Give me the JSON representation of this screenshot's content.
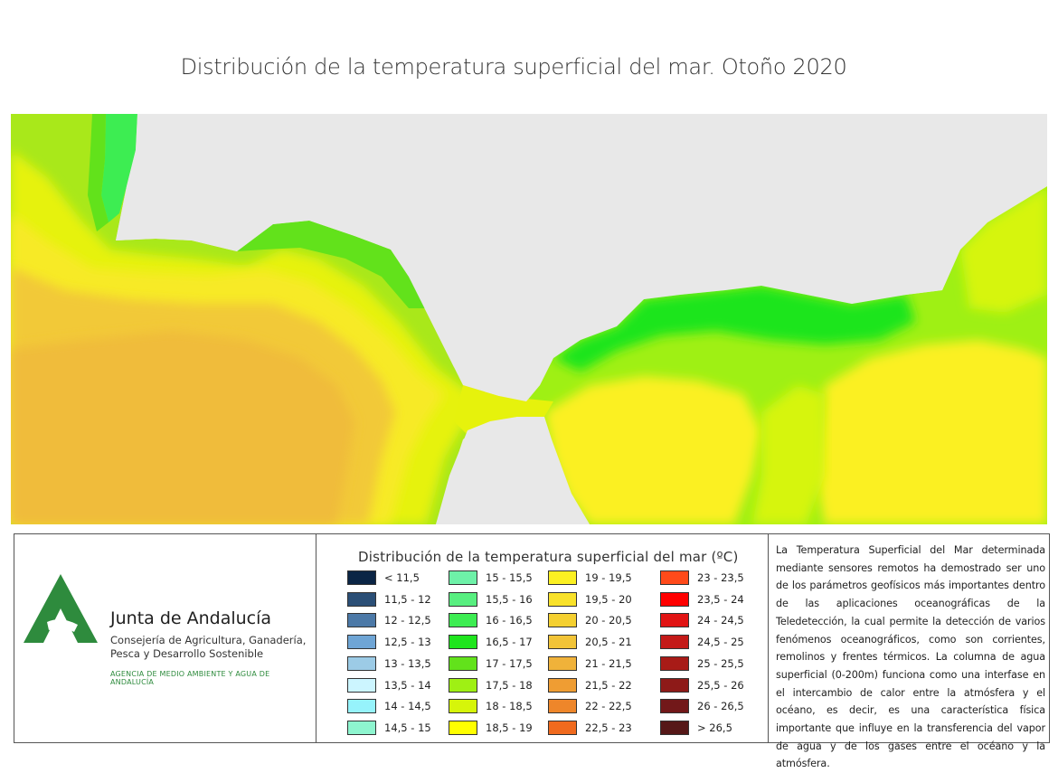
{
  "title": "Distribución de la temperatura superficial del mar. Otoño 2020",
  "org": {
    "name": "Junta de Andalucía",
    "dept": "Consejería de Agricultura, Ganadería, Pesca y Desarrollo Sostenible",
    "agency": "AGENCIA DE MEDIO AMBIENTE Y AGUA DE ANDALUCÍA",
    "brand_color": "#2e8b3d"
  },
  "legend": {
    "title": "Distribución de la temperatura superficial del mar (ºC)",
    "items": [
      {
        "label": "< 11,5",
        "color": "#0b2545"
      },
      {
        "label": "11,5 - 12",
        "color": "#2b4f76"
      },
      {
        "label": "12 - 12,5",
        "color": "#4c79a7"
      },
      {
        "label": "12,5 - 13",
        "color": "#6fa5d5"
      },
      {
        "label": "13 - 13,5",
        "color": "#9ccbe6"
      },
      {
        "label": "13,5 - 14",
        "color": "#ccf5ff"
      },
      {
        "label": "14 - 14,5",
        "color": "#96f3fb"
      },
      {
        "label": "14,5 - 15",
        "color": "#8ef5cf"
      },
      {
        "label": "15 - 15,5",
        "color": "#6ef1a8"
      },
      {
        "label": "15,5 - 16",
        "color": "#58ef80"
      },
      {
        "label": "16 - 16,5",
        "color": "#3ded52"
      },
      {
        "label": "16,5 - 17",
        "color": "#1fe51d"
      },
      {
        "label": "17 - 17,5",
        "color": "#62e21b"
      },
      {
        "label": "17,5 - 18",
        "color": "#9ff014"
      },
      {
        "label": "18 - 18,5",
        "color": "#d6f50a"
      },
      {
        "label": "18,5 - 19",
        "color": "#ffff00"
      },
      {
        "label": "19 - 19,5",
        "color": "#fbf022"
      },
      {
        "label": "19,5 - 20",
        "color": "#f9e22a"
      },
      {
        "label": "20 - 20,5",
        "color": "#f5d030"
      },
      {
        "label": "20,5 - 21",
        "color": "#f2c437"
      },
      {
        "label": "21 - 21,5",
        "color": "#f0b23a"
      },
      {
        "label": "21,5 - 22",
        "color": "#ef9d33"
      },
      {
        "label": "22 - 22,5",
        "color": "#ee862a"
      },
      {
        "label": "22,5 - 23",
        "color": "#f06a1e"
      },
      {
        "label": "23 - 23,5",
        "color": "#ff4a1a"
      },
      {
        "label": "23,5 - 24",
        "color": "#ff0000"
      },
      {
        "label": "24 - 24,5",
        "color": "#e11414"
      },
      {
        "label": "24,5 - 25",
        "color": "#c41a18"
      },
      {
        "label": "25 - 25,5",
        "color": "#a81b17"
      },
      {
        "label": "25,5 - 26",
        "color": "#8e1a18"
      },
      {
        "label": "26 - 26,5",
        "color": "#721819"
      },
      {
        "label": "> 26,5",
        "color": "#561818"
      }
    ]
  },
  "description": "La Temperatura Superficial del Mar determinada mediante sensores remotos ha demostrado ser uno de los parámetros geofísicos más importantes dentro de las aplicaciones oceanográficas de la Teledetección, la cual permite la detección de varios fenómenos oceanográficos, como son corrientes, remolinos y frentes térmicos. La columna de agua superficial (0-200m) funciona como una interfase en el intercambio de calor entre la atmósfera y el océano, es decir, es una característica física importante que influye en la transferencia del vapor de agua y de los gases entre el océano y la atmósfera.",
  "map": {
    "land_color": "#e8e8e8"
  }
}
